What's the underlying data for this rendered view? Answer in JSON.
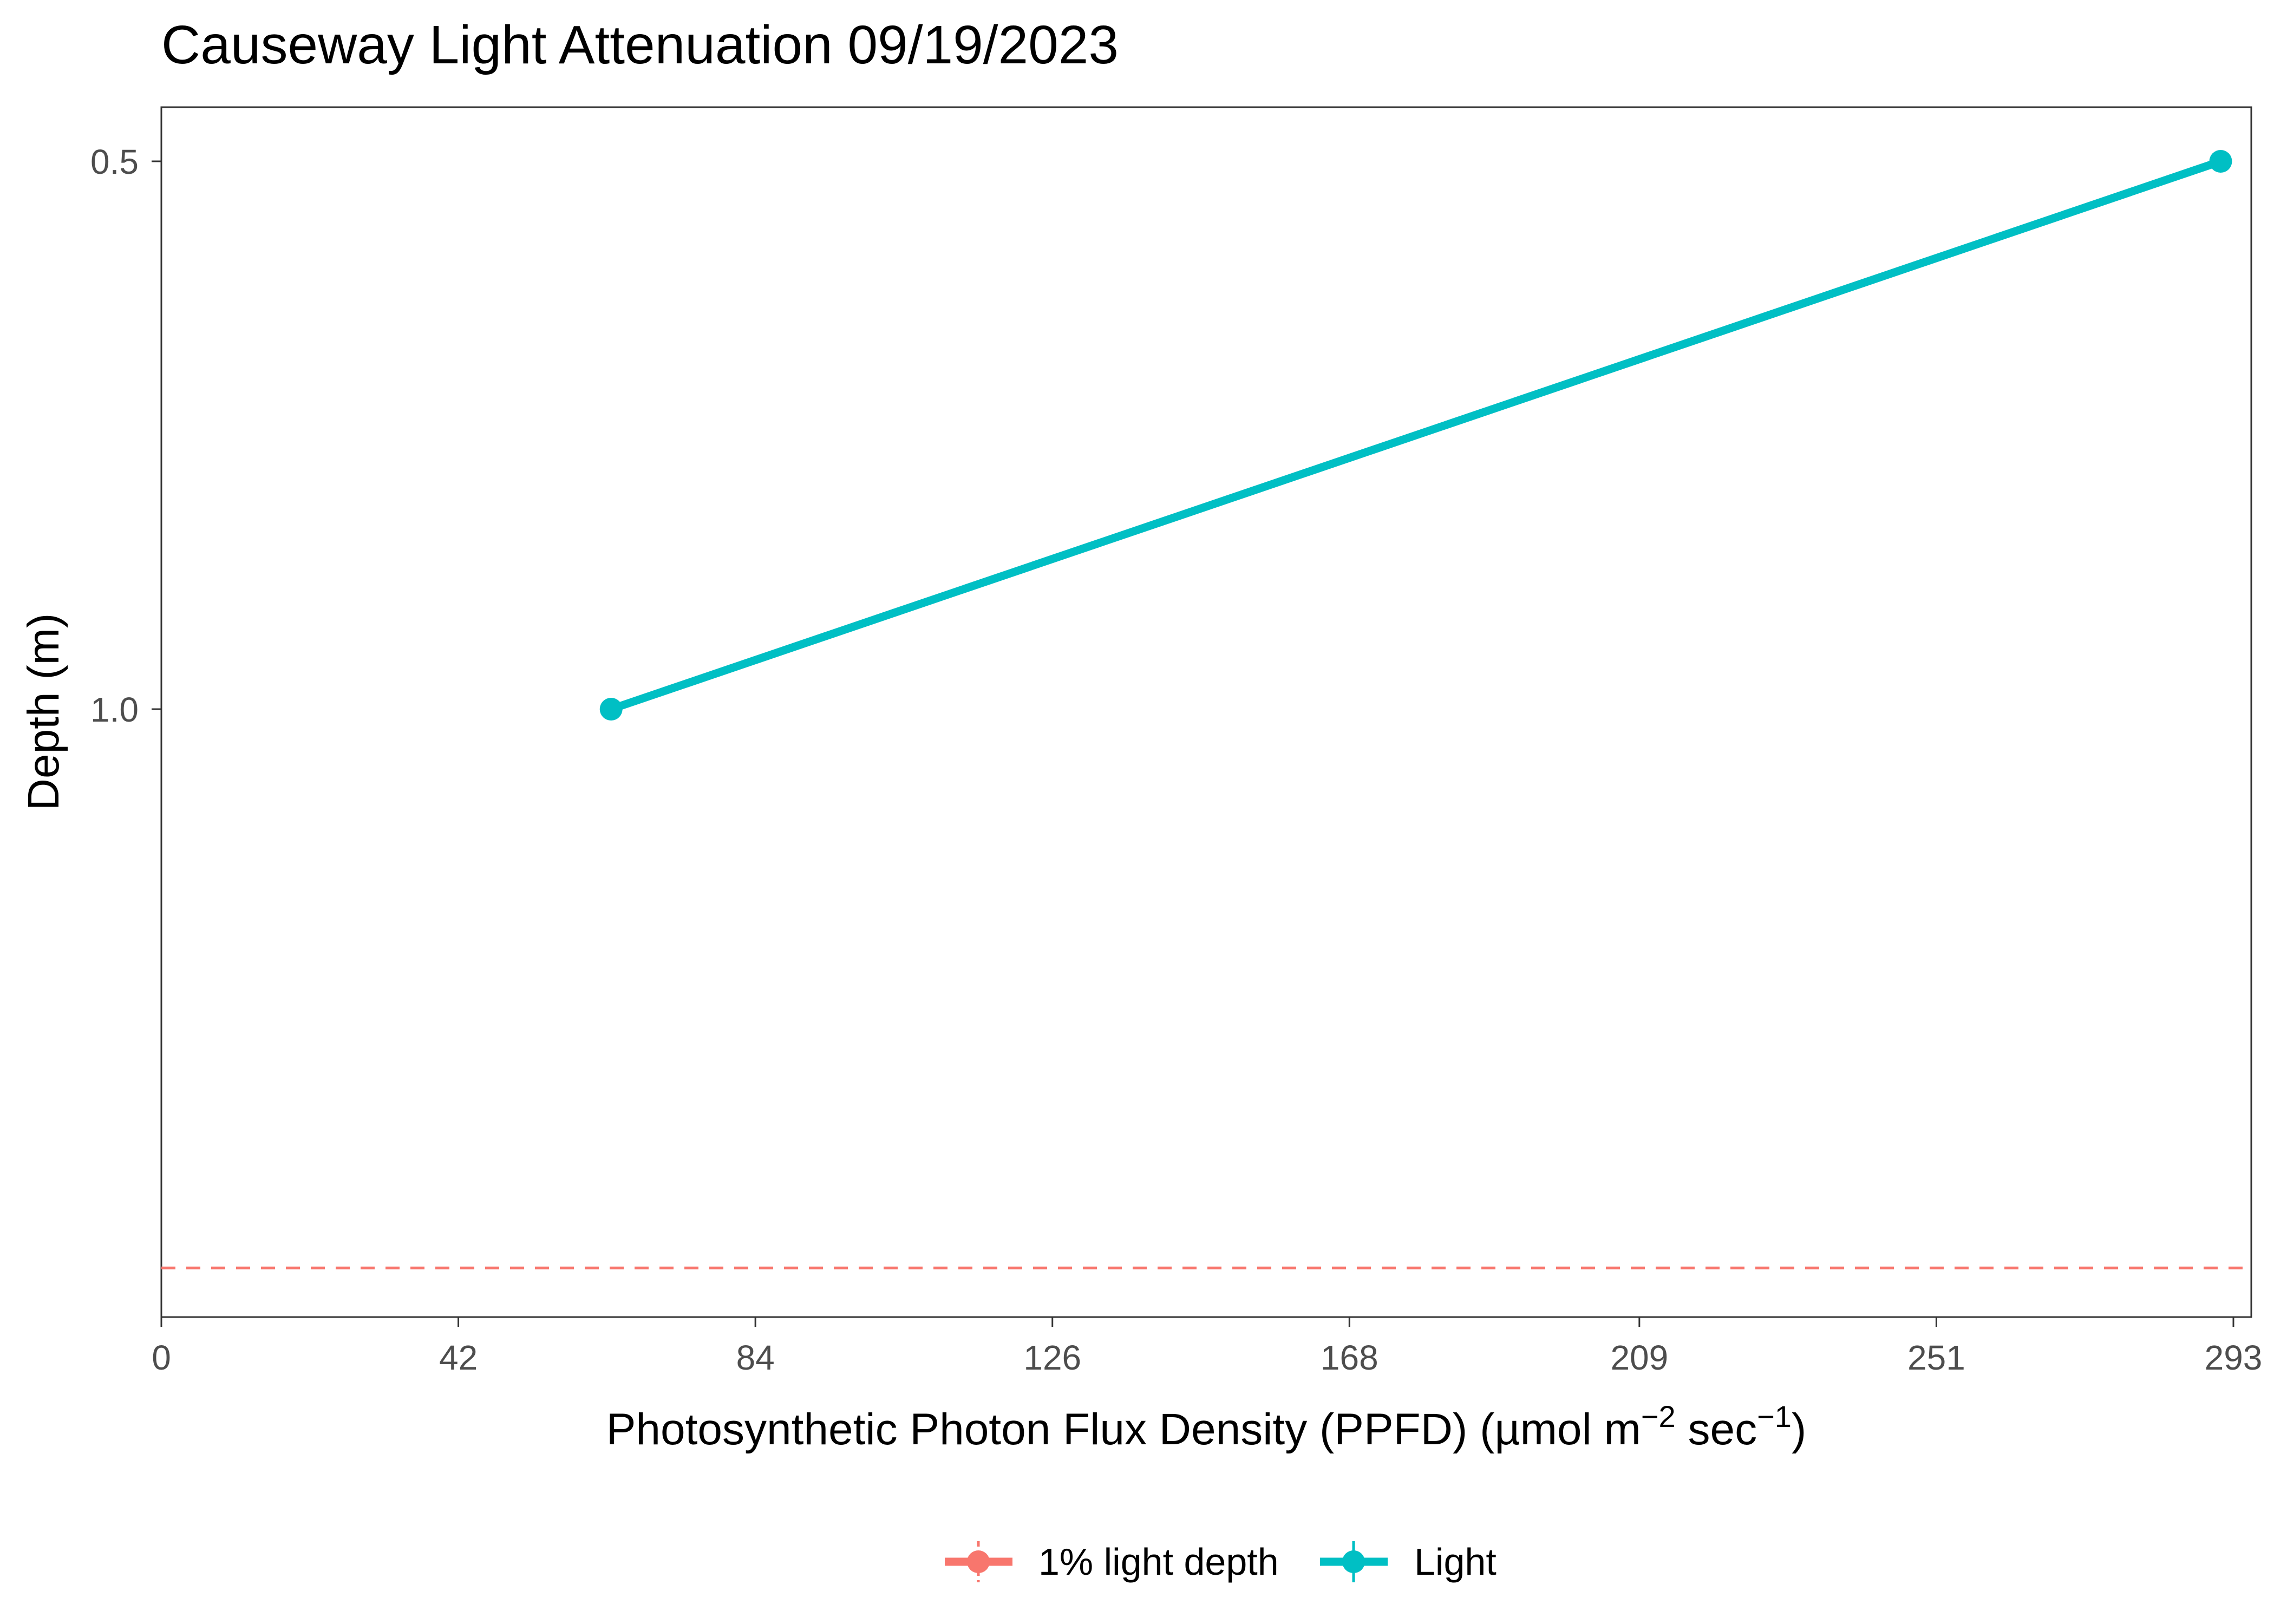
{
  "chart_data": {
    "type": "line",
    "title": "Causeway Light Attenuation 09/19/2023",
    "xlabel_prefix": "Photosynthetic Photon Flux Density (PPFD) (µmol m",
    "xlabel_sup1": "−2",
    "xlabel_mid": " sec",
    "xlabel_sup2": "−1",
    "xlabel_suffix": ")",
    "ylabel": "Depth (m)",
    "x_ticks": [
      "0",
      "42",
      "84",
      "126",
      "168",
      "209",
      "251",
      "293"
    ],
    "x_tick_values": [
      0,
      42,
      84,
      126,
      168,
      209,
      251,
      293
    ],
    "y_ticks": [
      "0.5",
      "1.0"
    ],
    "y_tick_values": [
      0.5,
      1.0
    ],
    "xlim": [
      0,
      293
    ],
    "ylim_depth": [
      0.45,
      1.56
    ],
    "y_reversed": true,
    "grid": false,
    "legend_position": "bottom",
    "series": [
      {
        "name": "1% light depth",
        "type": "hline",
        "style": "dashed",
        "color": "#F8766D",
        "y": 1.51
      },
      {
        "name": "Light",
        "type": "line",
        "color": "#00BFC4",
        "x": [
          63.6,
          291.2
        ],
        "y": [
          1.0,
          0.5
        ]
      }
    ]
  }
}
